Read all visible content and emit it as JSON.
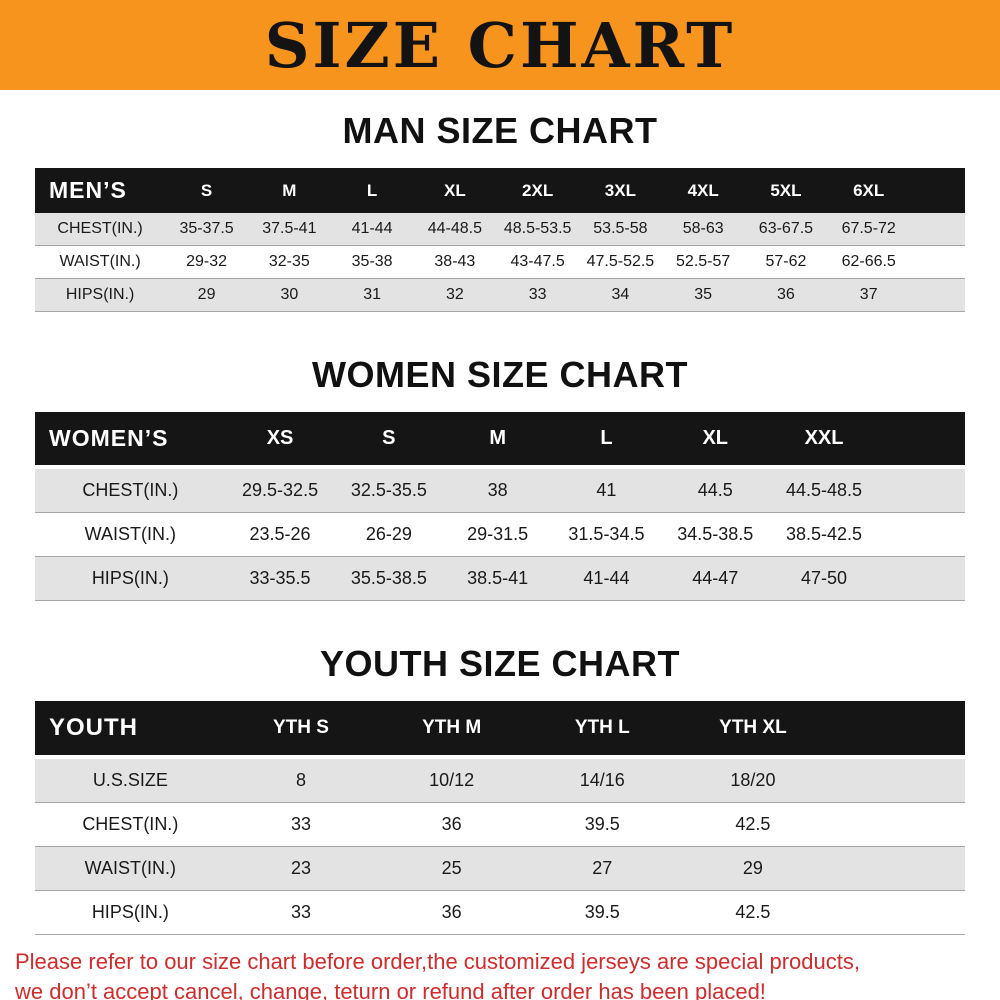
{
  "banner": {
    "title": "SIZE CHART",
    "bg_color": "#F7941D"
  },
  "chart_data": [
    {
      "type": "table",
      "title": "MAN SIZE CHART",
      "header_label": "MEN’S",
      "columns": [
        "S",
        "M",
        "L",
        "XL",
        "2XL",
        "3XL",
        "4XL",
        "5XL",
        "6XL"
      ],
      "rows": [
        {
          "label": "CHEST(IN.)",
          "values": [
            "35-37.5",
            "37.5-41",
            "41-44",
            "44-48.5",
            "48.5-53.5",
            "53.5-58",
            "58-63",
            "63-67.5",
            "67.5-72"
          ]
        },
        {
          "label": "WAIST(IN.)",
          "values": [
            "29-32",
            "32-35",
            "35-38",
            "38-43",
            "43-47.5",
            "47.5-52.5",
            "52.5-57",
            "57-62",
            "62-66.5"
          ]
        },
        {
          "label": "HIPS(IN.)",
          "values": [
            "29",
            "30",
            "31",
            "32",
            "33",
            "34",
            "35",
            "36",
            "37"
          ]
        }
      ]
    },
    {
      "type": "table",
      "title": "WOMEN SIZE CHART",
      "header_label": "WOMEN’S",
      "columns": [
        "XS",
        "S",
        "M",
        "L",
        "XL",
        "XXL"
      ],
      "rows": [
        {
          "label": "CHEST(IN.)",
          "values": [
            "29.5-32.5",
            "32.5-35.5",
            "38",
            "41",
            "44.5",
            "44.5-48.5"
          ]
        },
        {
          "label": "WAIST(IN.)",
          "values": [
            "23.5-26",
            "26-29",
            "29-31.5",
            "31.5-34.5",
            "34.5-38.5",
            "38.5-42.5"
          ]
        },
        {
          "label": "HIPS(IN.)",
          "values": [
            "33-35.5",
            "35.5-38.5",
            "38.5-41",
            "41-44",
            "44-47",
            "47-50"
          ]
        }
      ]
    },
    {
      "type": "table",
      "title": "YOUTH SIZE CHART",
      "header_label": "YOUTH",
      "columns": [
        "YTH S",
        "YTH M",
        "YTH L",
        "YTH XL"
      ],
      "rows": [
        {
          "label": "U.S.SIZE",
          "values": [
            "8",
            "10/12",
            "14/16",
            "18/20"
          ]
        },
        {
          "label": "CHEST(IN.)",
          "values": [
            "33",
            "36",
            "39.5",
            "42.5"
          ]
        },
        {
          "label": "WAIST(IN.)",
          "values": [
            "23",
            "25",
            "27",
            "29"
          ]
        },
        {
          "label": "HIPS(IN.)",
          "values": [
            "33",
            "36",
            "39.5",
            "42.5"
          ]
        }
      ]
    }
  ],
  "footer": {
    "color": "#d22b2b",
    "lines": [
      "Please refer to our size chart before order,the customized jerseys are special products,",
      "we don’t accept cancel, change, teturn or refund after order has been placed!"
    ]
  }
}
